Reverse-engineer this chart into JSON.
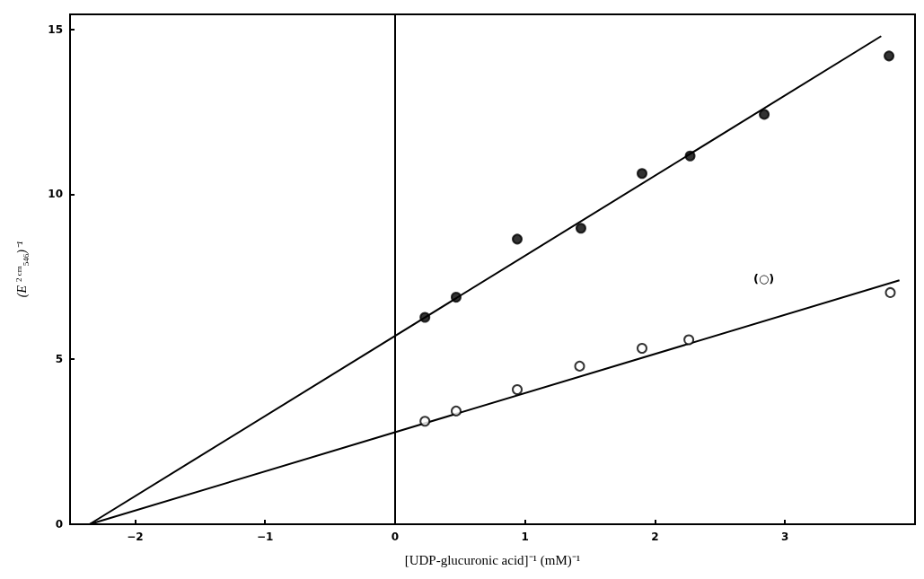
{
  "chart_data": {
    "type": "scatter",
    "xlabel": "[UDP-glucuronic acid]⁻¹ (mM)⁻¹",
    "ylabel": "(E$^{2 cm}$$_{546}$)⁻¹",
    "xlim": [
      -2.5,
      4.0
    ],
    "ylim": [
      0,
      15.45
    ],
    "xticks": [
      -2,
      -1,
      0,
      1,
      2,
      3
    ],
    "yticks": [
      0,
      5,
      10,
      15
    ],
    "grid": false,
    "marker": "circle",
    "series": [
      {
        "color": "#000000",
        "x": [
          0.23,
          0.47,
          0.94,
          1.43,
          1.9,
          2.27,
          2.84,
          3.8
        ],
        "values": [
          6.27,
          6.88,
          8.64,
          8.97,
          10.63,
          11.16,
          12.42,
          14.19
        ]
      },
      {
        "color": "#ffffff",
        "x": [
          0.23,
          0.47,
          0.94,
          1.42,
          1.9,
          2.26,
          3.81
        ],
        "values": [
          3.12,
          3.43,
          4.08,
          4.79,
          5.33,
          5.59,
          7.02
        ]
      },
      {
        "type": "line",
        "color": "#000000",
        "marker": "none",
        "x": [
          -2.35,
          3.74
        ],
        "values": [
          0,
          14.79
        ]
      },
      {
        "type": "line",
        "color": "#000000",
        "marker": "none",
        "x": [
          -2.35,
          3.88
        ],
        "values": [
          0,
          7.39
        ]
      }
    ],
    "ref_lines": [
      {
        "axis": "x",
        "value": 0,
        "label": null
      }
    ],
    "annotations": [
      "(○)"
    ]
  }
}
